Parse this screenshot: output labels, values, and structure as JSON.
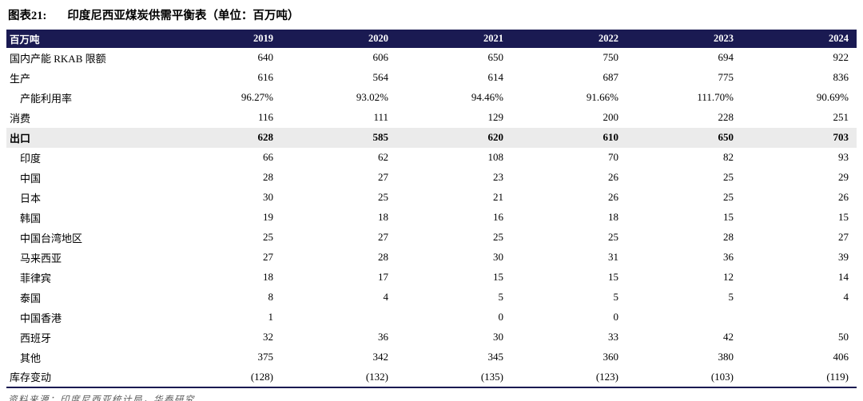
{
  "title": {
    "prefix": "图表21:",
    "text": "印度尼西亚煤炭供需平衡表（单位：百万吨）"
  },
  "chart_data": {
    "type": "table",
    "title": "印度尼西亚煤炭供需平衡表（单位：百万吨）",
    "columns": [
      "百万吨",
      "2019",
      "2020",
      "2021",
      "2022",
      "2023",
      "2024"
    ],
    "rows": [
      {
        "label": "国内产能 RKAB 限额",
        "indent": 0,
        "bold": false,
        "highlight": false,
        "values": [
          "640",
          "606",
          "650",
          "750",
          "694",
          "922"
        ]
      },
      {
        "label": "生产",
        "indent": 0,
        "bold": false,
        "highlight": false,
        "values": [
          "616",
          "564",
          "614",
          "687",
          "775",
          "836"
        ]
      },
      {
        "label": "产能利用率",
        "indent": 1,
        "bold": false,
        "highlight": false,
        "values": [
          "96.27%",
          "93.02%",
          "94.46%",
          "91.66%",
          "111.70%",
          "90.69%"
        ]
      },
      {
        "label": "消费",
        "indent": 0,
        "bold": false,
        "highlight": false,
        "values": [
          "116",
          "111",
          "129",
          "200",
          "228",
          "251"
        ]
      },
      {
        "label": "出口",
        "indent": 0,
        "bold": true,
        "highlight": true,
        "values": [
          "628",
          "585",
          "620",
          "610",
          "650",
          "703"
        ]
      },
      {
        "label": "印度",
        "indent": 1,
        "bold": false,
        "highlight": false,
        "values": [
          "66",
          "62",
          "108",
          "70",
          "82",
          "93"
        ]
      },
      {
        "label": "中国",
        "indent": 1,
        "bold": false,
        "highlight": false,
        "values": [
          "28",
          "27",
          "23",
          "26",
          "25",
          "29"
        ]
      },
      {
        "label": "日本",
        "indent": 1,
        "bold": false,
        "highlight": false,
        "values": [
          "30",
          "25",
          "21",
          "26",
          "25",
          "26"
        ]
      },
      {
        "label": "韩国",
        "indent": 1,
        "bold": false,
        "highlight": false,
        "values": [
          "19",
          "18",
          "16",
          "18",
          "15",
          "15"
        ]
      },
      {
        "label": "中国台湾地区",
        "indent": 1,
        "bold": false,
        "highlight": false,
        "values": [
          "25",
          "27",
          "25",
          "25",
          "28",
          "27"
        ]
      },
      {
        "label": "马来西亚",
        "indent": 1,
        "bold": false,
        "highlight": false,
        "values": [
          "27",
          "28",
          "30",
          "31",
          "36",
          "39"
        ]
      },
      {
        "label": "菲律宾",
        "indent": 1,
        "bold": false,
        "highlight": false,
        "values": [
          "18",
          "17",
          "15",
          "15",
          "12",
          "14"
        ]
      },
      {
        "label": "泰国",
        "indent": 1,
        "bold": false,
        "highlight": false,
        "values": [
          "8",
          "4",
          "5",
          "5",
          "5",
          "4"
        ]
      },
      {
        "label": "中国香港",
        "indent": 1,
        "bold": false,
        "highlight": false,
        "values": [
          "1",
          "",
          "0",
          "0",
          "",
          ""
        ]
      },
      {
        "label": "西班牙",
        "indent": 1,
        "bold": false,
        "highlight": false,
        "values": [
          "32",
          "36",
          "30",
          "33",
          "42",
          "50"
        ]
      },
      {
        "label": "其他",
        "indent": 1,
        "bold": false,
        "highlight": false,
        "values": [
          "375",
          "342",
          "345",
          "360",
          "380",
          "406"
        ]
      },
      {
        "label": "库存变动",
        "indent": 0,
        "bold": false,
        "highlight": false,
        "values": [
          "(128)",
          "(132)",
          "(135)",
          "(123)",
          "(103)",
          "(119)"
        ]
      }
    ]
  },
  "footer": {
    "source": "资料来源：印度尼西亚统计局，华泰研究"
  },
  "colors": {
    "header_bg": "#1A1A52",
    "highlight_bg": "#ebebeb",
    "source_text": "#595959"
  }
}
